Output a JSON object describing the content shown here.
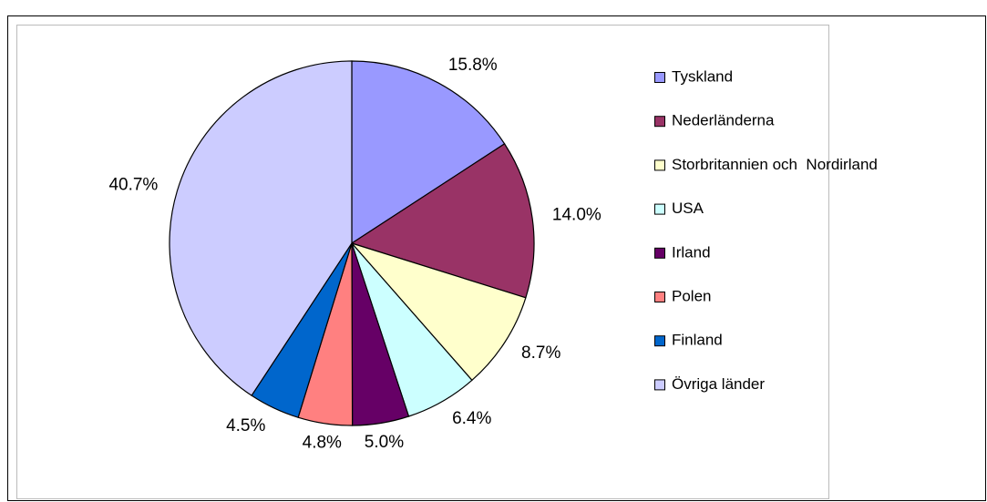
{
  "chart_data": {
    "type": "pie",
    "categories": [
      "Tyskland",
      "Nederländerna",
      "Storbritannien och  Nordirland",
      "USA",
      "Irland",
      "Polen",
      "Finland",
      "Övriga länder"
    ],
    "values": [
      15.8,
      14.0,
      8.7,
      6.4,
      5.0,
      4.8,
      4.5,
      40.7
    ],
    "value_labels": [
      "15.8%",
      "14.0%",
      "8.7%",
      "6.4%",
      "5.0%",
      "4.8%",
      "4.5%",
      "40.7%"
    ],
    "colors": [
      "#9999ff",
      "#993366",
      "#ffffcc",
      "#ccffff",
      "#660066",
      "#ff8080",
      "#0066cc",
      "#ccccff"
    ],
    "legend": "right"
  }
}
